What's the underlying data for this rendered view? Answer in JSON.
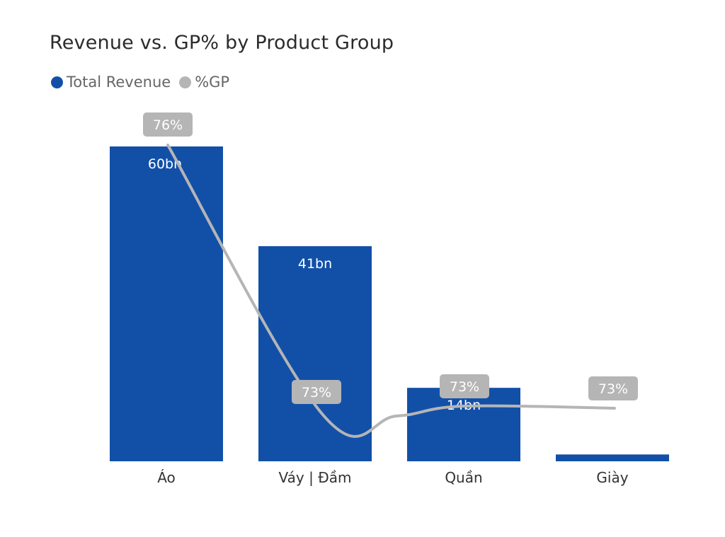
{
  "chart_data": {
    "type": "bar",
    "title": "Revenue vs. GP% by Product Group",
    "categories": [
      "Áo",
      "Váy | Đầm",
      "Quần",
      "Giày"
    ],
    "series": [
      {
        "name": "Total Revenue",
        "type": "bar",
        "color": "#1250A8",
        "values": [
          60,
          41,
          14,
          1.3
        ],
        "labels": [
          "60bn",
          "41bn",
          "14bn",
          ""
        ]
      },
      {
        "name": "%GP",
        "type": "line",
        "color": "#B5B5B5",
        "values": [
          76,
          73,
          73,
          73
        ],
        "labels": [
          "76%",
          "73%",
          "73%",
          "73%"
        ]
      }
    ],
    "ylim": [
      0,
      60
    ],
    "xlabel": "",
    "ylabel": "",
    "legend_position": "top-left",
    "grid": false
  }
}
